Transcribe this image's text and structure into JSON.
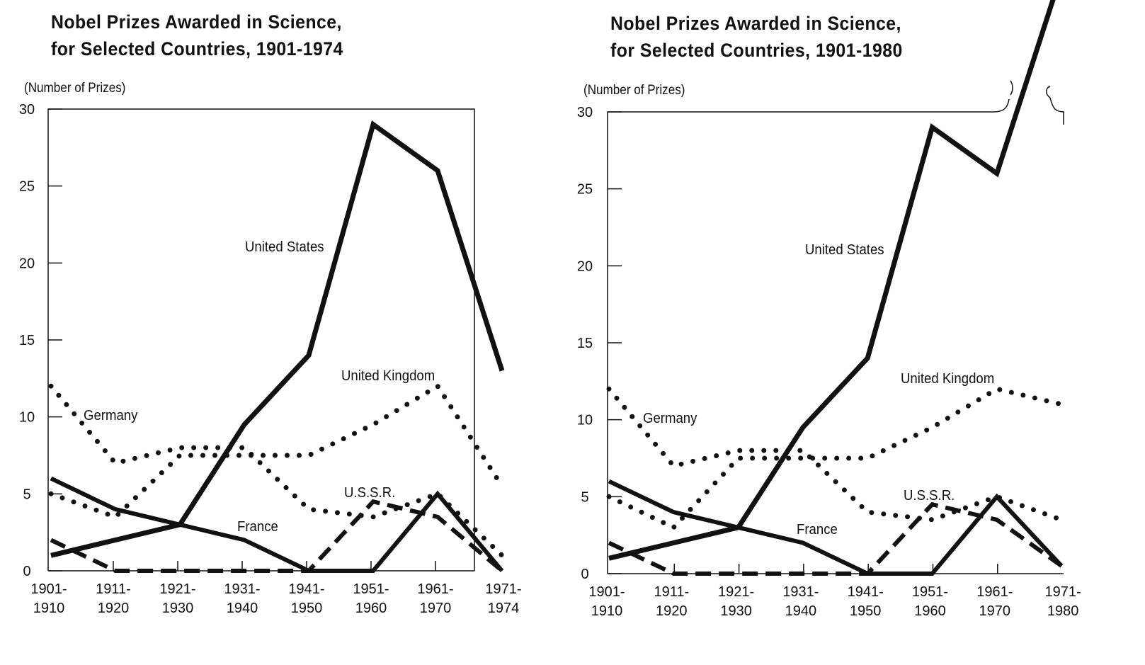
{
  "chart_data": [
    {
      "type": "line",
      "title_lines": [
        "Nobel Prizes Awarded in Science,",
        "for Selected Countries, 1901-1974"
      ],
      "ylabel": "(Number of Prizes)",
      "ylim": [
        0,
        30
      ],
      "yticks": [
        "0",
        "5",
        "10",
        "15",
        "20",
        "25",
        "30"
      ],
      "categories": [
        [
          "1901-",
          "1910"
        ],
        [
          "1911-",
          "1920"
        ],
        [
          "1921-",
          "1930"
        ],
        [
          "1931-",
          "1940"
        ],
        [
          "1941-",
          "1950"
        ],
        [
          "1951-",
          "1960"
        ],
        [
          "1961-",
          "1970"
        ],
        [
          "1971-",
          "1974"
        ]
      ],
      "series": [
        {
          "name": "United States",
          "style": "solid-thick",
          "values": [
            1,
            2,
            3,
            9.5,
            14,
            29,
            26,
            13
          ]
        },
        {
          "name": "United Kingdom",
          "style": "dotted",
          "values": [
            5,
            3.5,
            7.5,
            7.5,
            7.5,
            9.5,
            12,
            5.5
          ]
        },
        {
          "name": "Germany",
          "style": "dotted",
          "values": [
            12,
            7,
            8,
            8,
            4,
            3.5,
            5,
            1
          ]
        },
        {
          "name": "France",
          "style": "solid",
          "values": [
            6,
            4,
            3,
            2,
            0,
            0,
            5,
            0
          ]
        },
        {
          "name": "U.S.S.R.",
          "style": "dashed",
          "values": [
            2,
            0,
            0,
            0,
            0,
            4.5,
            3.5,
            0
          ]
        }
      ],
      "series_labels": [
        "United States",
        "United Kingdom",
        "Germany",
        "France",
        "U.S.S.R."
      ]
    },
    {
      "type": "line",
      "title_lines": [
        "Nobel Prizes Awarded in Science,",
        "for Selected Countries, 1901-1980"
      ],
      "ylabel": "(Number of Prizes)",
      "ylim": [
        0,
        30
      ],
      "yticks": [
        "0",
        "5",
        "10",
        "15",
        "20",
        "25",
        "30"
      ],
      "categories": [
        [
          "1901-",
          "1910"
        ],
        [
          "1911-",
          "1920"
        ],
        [
          "1921-",
          "1930"
        ],
        [
          "1931-",
          "1940"
        ],
        [
          "1941-",
          "1950"
        ],
        [
          "1951-",
          "1960"
        ],
        [
          "1961-",
          "1970"
        ],
        [
          "1971-",
          "1980"
        ]
      ],
      "series": [
        {
          "name": "United States",
          "style": "solid-thick",
          "values": [
            1,
            2,
            3,
            9.5,
            14,
            29,
            26,
            39
          ]
        },
        {
          "name": "United Kingdom",
          "style": "dotted",
          "values": [
            5,
            3,
            7.5,
            7.5,
            7.5,
            9.5,
            12,
            11
          ]
        },
        {
          "name": "Germany",
          "style": "dotted",
          "values": [
            12,
            7,
            8,
            8,
            4,
            3.5,
            5,
            3.5
          ]
        },
        {
          "name": "France",
          "style": "solid",
          "values": [
            6,
            4,
            3,
            2,
            0,
            0,
            5,
            0.5
          ]
        },
        {
          "name": "U.S.S.R.",
          "style": "dashed",
          "values": [
            2,
            0,
            0,
            0,
            0,
            4.5,
            3.5,
            0.5
          ]
        }
      ],
      "series_labels": [
        "United States",
        "United Kingdom",
        "Germany",
        "France",
        "U.S.S.R."
      ],
      "axis_break": true
    }
  ]
}
